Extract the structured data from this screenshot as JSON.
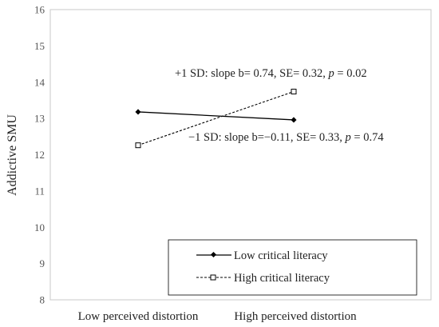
{
  "chart_data": {
    "type": "line",
    "ylabel": "Addictive SMU",
    "xlabel": "",
    "categories": [
      "Low perceived distortion",
      "High perceived distortion"
    ],
    "ylim": [
      8,
      16
    ],
    "yticks": [
      "8",
      "9",
      "10",
      "11",
      "12",
      "13",
      "14",
      "15",
      "16"
    ],
    "grid": false,
    "legend_position": "bottom-right",
    "series": [
      {
        "name": "Low critical literacy",
        "values": [
          13.18,
          12.96
        ],
        "color": "#000000",
        "line_style": "solid",
        "marker": "diamond"
      },
      {
        "name": "High critical literacy",
        "values": [
          12.26,
          13.74
        ],
        "color": "#000000",
        "line_style": "dashed",
        "marker": "square"
      }
    ],
    "annotations": [
      {
        "prefix": "+1 SD: slope b= 0.74, SE= 0.32, ",
        "p_symbol": "p",
        "suffix": " = 0.02"
      },
      {
        "prefix": "−1 SD: slope b=−0.11, SE= 0.33, ",
        "p_symbol": "p",
        "suffix": " = 0.74"
      }
    ]
  }
}
